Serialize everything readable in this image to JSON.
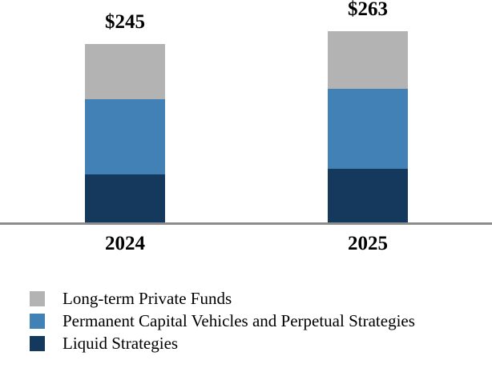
{
  "chart_data": {
    "type": "bar",
    "stacked": true,
    "categories": [
      "2024",
      "2025"
    ],
    "bar_total_labels": [
      "$245",
      "$263"
    ],
    "totals": [
      245,
      263
    ],
    "series": [
      {
        "name": "Liquid Strategies",
        "color": "#14395c",
        "values": [
          66,
          74
        ]
      },
      {
        "name": "Permanent Capital Vehicles and Perpetual Strategies",
        "color": "#4181b5",
        "values": [
          103,
          110
        ]
      },
      {
        "name": "Long-term Private Funds",
        "color": "#b3b3b3",
        "values": [
          76,
          79
        ]
      }
    ],
    "series_order": "bottom-to-top",
    "axis_line_color": "#8c8c8c",
    "grid": false,
    "legend_position": "bottom-left"
  },
  "legend": {
    "items": [
      {
        "label": "Long-term Private Funds",
        "color": "#b3b3b3"
      },
      {
        "label": "Permanent Capital Vehicles and Perpetual Strategies",
        "color": "#4181b5"
      },
      {
        "label": "Liquid Strategies",
        "color": "#14395c"
      }
    ]
  }
}
